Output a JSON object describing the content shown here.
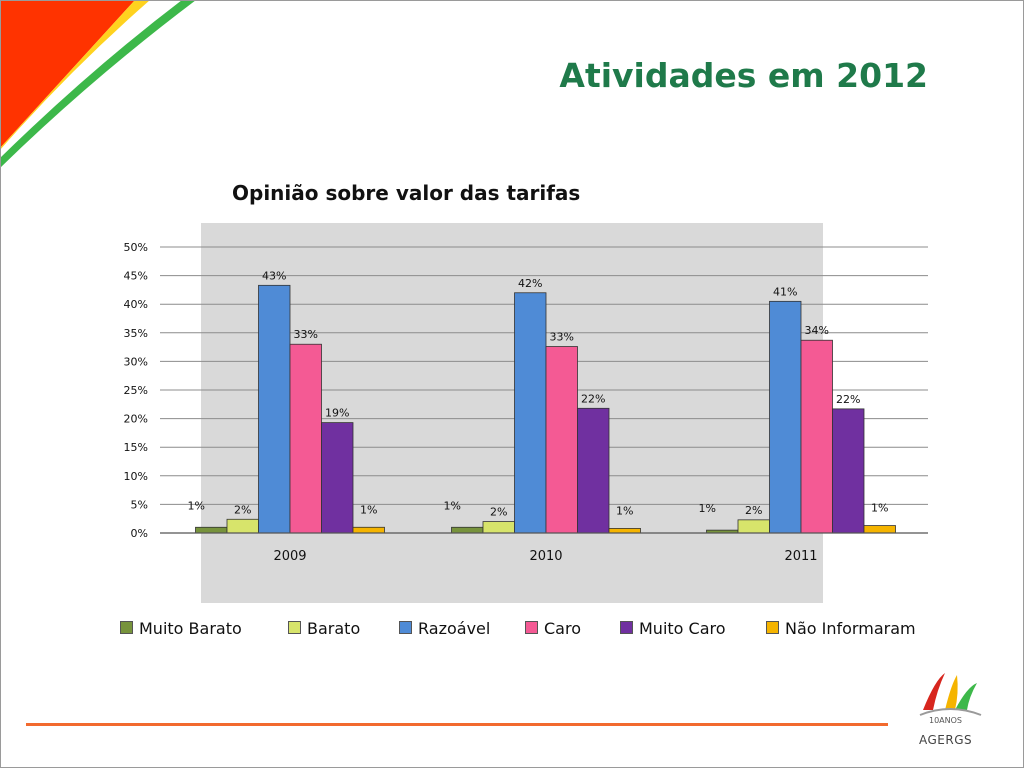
{
  "slide": {
    "title": "Atividades em 2012"
  },
  "colors": {
    "brand_green": "#1f7a4a",
    "accent_orange": "#f26a2e",
    "corner_red": "#ff3300",
    "corner_yellow": "#ffd21f",
    "corner_green": "#3db84a"
  },
  "chart_data": {
    "type": "bar",
    "title": "Opinião sobre valor das tarifas",
    "categories": [
      "2009",
      "2010",
      "2011"
    ],
    "ylim": [
      0,
      50
    ],
    "yticks": [
      "0%",
      "5%",
      "10%",
      "15%",
      "20%",
      "25%",
      "30%",
      "35%",
      "40%",
      "45%",
      "50%"
    ],
    "grid": true,
    "legend_position": "bottom",
    "series": [
      {
        "name": "Muito Barato",
        "color": "#77933c",
        "values": [
          1.0,
          1.0,
          0.5
        ],
        "labels": [
          "1%",
          "1%",
          "1%"
        ]
      },
      {
        "name": "Barato",
        "color": "#d7e46b",
        "values": [
          2.4,
          2.0,
          2.3
        ],
        "labels": [
          "2%",
          "2%",
          "2%"
        ]
      },
      {
        "name": "Razoável",
        "color": "#4f8bd6",
        "values": [
          43.3,
          42.0,
          40.5
        ],
        "labels": [
          "43%",
          "42%",
          "41%"
        ]
      },
      {
        "name": "Caro",
        "color": "#f45a94",
        "values": [
          33.0,
          32.6,
          33.7
        ],
        "labels": [
          "33%",
          "33%",
          "34%"
        ]
      },
      {
        "name": "Muito Caro",
        "color": "#7030a0",
        "values": [
          19.3,
          21.8,
          21.7
        ],
        "labels": [
          "19%",
          "22%",
          "22%"
        ]
      },
      {
        "name": "Não Informaram",
        "color": "#f5b400",
        "values": [
          1.0,
          0.8,
          1.3
        ],
        "labels": [
          "1%",
          "1%",
          "1%"
        ]
      }
    ]
  },
  "logo": {
    "anos": "10ANOS",
    "name": "AGERGS"
  }
}
